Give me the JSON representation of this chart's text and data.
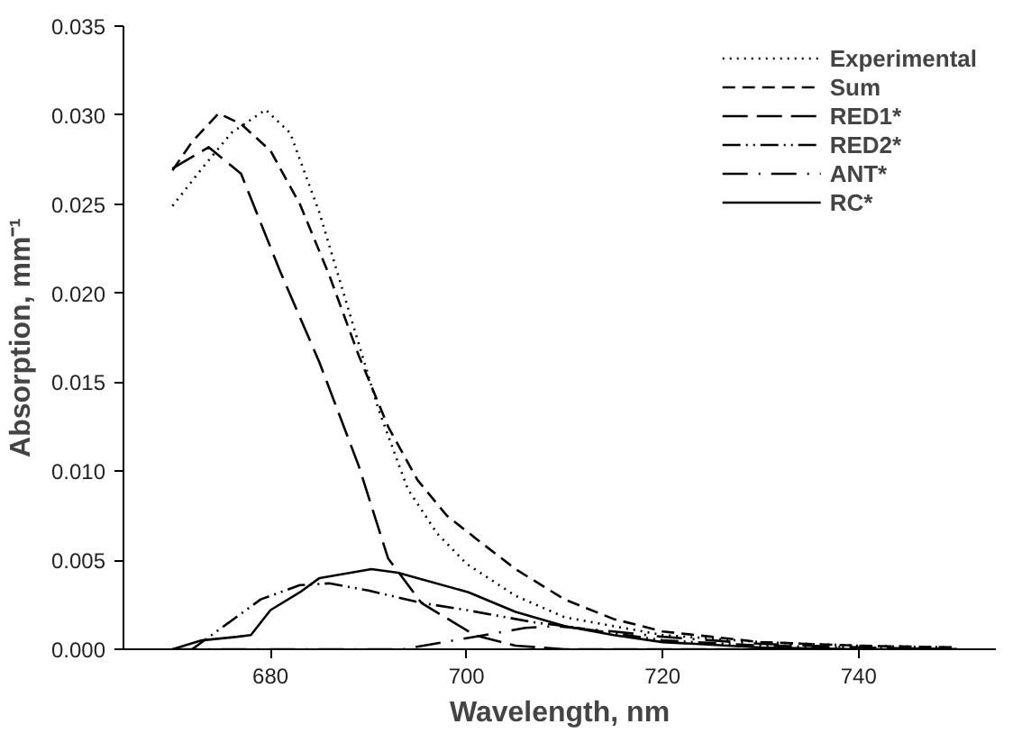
{
  "chart_data": {
    "type": "line",
    "xlabel": "Wavelength, nm",
    "ylabel": "Absorption, mm⁻¹",
    "xlim": [
      665,
      754
    ],
    "xticks": [
      680,
      700,
      720,
      740
    ],
    "ylim": [
      0,
      0.035
    ],
    "yticks": [
      {
        "value": 0,
        "label": "0.000"
      },
      {
        "value": 0.005,
        "label": "0.005"
      },
      {
        "value": 0.01,
        "label": "0.010"
      },
      {
        "value": 0.015,
        "label": "0.015"
      },
      {
        "value": 0.02,
        "label": "0.020"
      },
      {
        "value": 0.025,
        "label": "0.025"
      },
      {
        "value": 0.03,
        "label": "0.030"
      },
      {
        "value": 0.035,
        "label": "0.035"
      }
    ],
    "grid": false,
    "legend": "top right",
    "series": [
      {
        "name": "Experimental",
        "color": "#000000",
        "line_style": "dotted",
        "x": [
          670,
          673,
          676,
          679.5,
          682,
          685,
          688,
          691,
          694,
          697,
          700,
          705,
          710,
          720,
          730,
          740,
          750
        ],
        "values": [
          0.0249,
          0.027,
          0.029,
          0.0303,
          0.029,
          0.0245,
          0.019,
          0.0135,
          0.009,
          0.0065,
          0.0048,
          0.003,
          0.0018,
          0.0008,
          0.0004,
          0.0002,
          0.0001
        ]
      },
      {
        "name": "Sum",
        "color": "#000000",
        "line_style": "dashed",
        "x": [
          670,
          672,
          674.7,
          677,
          680,
          683,
          686,
          689,
          692,
          695,
          698,
          701,
          705,
          710,
          715,
          720,
          730,
          740,
          750
        ],
        "values": [
          0.0269,
          0.0285,
          0.0301,
          0.0295,
          0.028,
          0.025,
          0.021,
          0.0165,
          0.0125,
          0.0095,
          0.0075,
          0.0062,
          0.0045,
          0.0028,
          0.0017,
          0.001,
          0.0004,
          0.0002,
          0.0001
        ]
      },
      {
        "name": "RED1*",
        "color": "#000000",
        "line_style": "longdash",
        "x": [
          670,
          673.7,
          677,
          681,
          685,
          689,
          692,
          695.4,
          700.8,
          705,
          710,
          750
        ],
        "values": [
          0.027,
          0.0282,
          0.0267,
          0.0212,
          0.0161,
          0.0103,
          0.0051,
          0.0026,
          0.0008,
          0.0002,
          0,
          0
        ]
      },
      {
        "name": "RED2*",
        "color": "#000000",
        "line_style": "dashdotdot",
        "x": [
          672,
          675,
          679,
          683,
          686,
          690,
          695.4,
          700,
          707,
          710,
          720,
          730,
          740,
          750
        ],
        "values": [
          0,
          0.0012,
          0.0028,
          0.0036,
          0.0037,
          0.0033,
          0.0026,
          0.0022,
          0.0015,
          0.0013,
          0.0005,
          0.0002,
          0.0001,
          0
        ]
      },
      {
        "name": "ANT*",
        "color": "#000000",
        "line_style": "dashdot",
        "x": [
          670,
          680,
          693.5,
          700.8,
          706,
          709,
          715,
          720,
          730,
          740,
          750
        ],
        "values": [
          0,
          0,
          0,
          0.0007,
          0.0012,
          0.0013,
          0.001,
          0.0007,
          0.0003,
          0.0001,
          0
        ]
      },
      {
        "name": "RC*",
        "color": "#000000",
        "line_style": "solid",
        "x": [
          670,
          673,
          676.6,
          678,
          680,
          683,
          685,
          690.3,
          693,
          700.2,
          705,
          710,
          715,
          720,
          730,
          740,
          750
        ],
        "values": [
          0,
          0.0005,
          0.0007,
          0.0008,
          0.0022,
          0.0032,
          0.004,
          0.0045,
          0.0043,
          0.0032,
          0.0021,
          0.0013,
          0.0008,
          0.0004,
          0.0001,
          0,
          0
        ]
      }
    ]
  }
}
